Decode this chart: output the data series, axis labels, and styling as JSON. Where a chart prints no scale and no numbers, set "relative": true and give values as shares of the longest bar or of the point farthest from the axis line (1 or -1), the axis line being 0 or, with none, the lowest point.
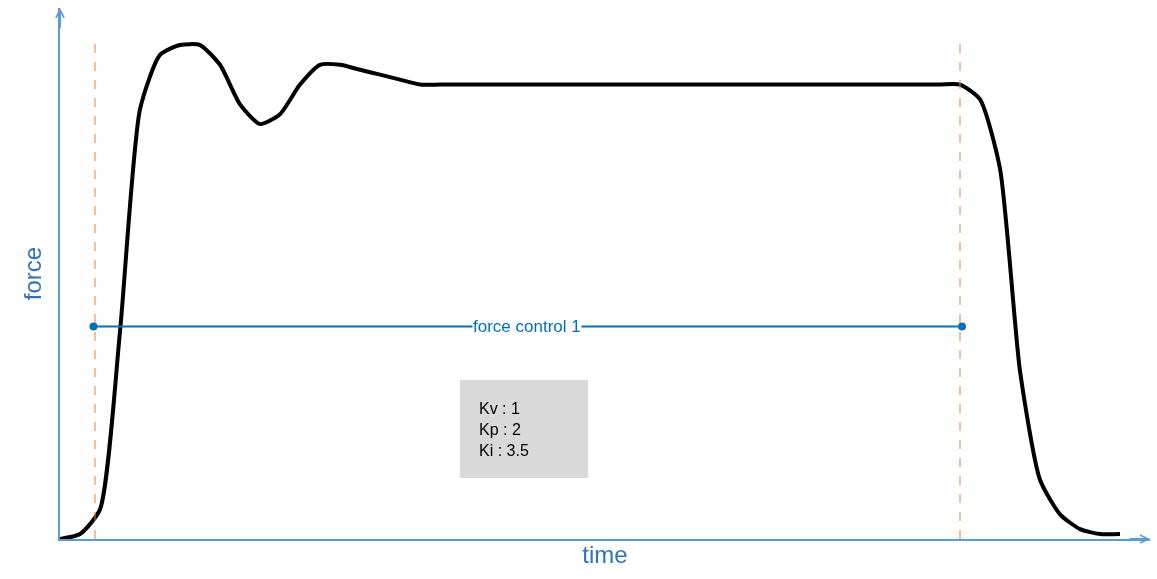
{
  "chart_data": {
    "type": "line",
    "relative": true,
    "xlabel": "time",
    "ylabel": "force",
    "categories": [
      null,
      null,
      null,
      null,
      null,
      null,
      null,
      null,
      null,
      null,
      null,
      null,
      null,
      null,
      null,
      null,
      null,
      null,
      null,
      null,
      null,
      null,
      null,
      null,
      null,
      null,
      null,
      null,
      null,
      null,
      null,
      null,
      null,
      null,
      null,
      null,
      null,
      null,
      null,
      null,
      null,
      null,
      null,
      null,
      null,
      null,
      null,
      null,
      null,
      null,
      null,
      null,
      null,
      null
    ],
    "series": [
      {
        "color": "#000000",
        "values": [
          0.0,
          0.01,
          0.06,
          0.42,
          0.87,
          0.98,
          1,
          1,
          0.96,
          0.88,
          0.84,
          0.86,
          0.92,
          0.96,
          0.96,
          0.95,
          0.94,
          0.93,
          0.92,
          0.92,
          0.92,
          0.92,
          0.92,
          0.92,
          0.92,
          0.92,
          0.92,
          0.92,
          0.92,
          0.92,
          0.92,
          0.92,
          0.92,
          0.92,
          0.92,
          0.92,
          0.92,
          0.92,
          0.92,
          0.92,
          0.92,
          0.92,
          0.92,
          0.92,
          0.92,
          0.92,
          0.89,
          0.75,
          0.34,
          0.12,
          0.05,
          0.02,
          0.01,
          0.01
        ]
      }
    ],
    "annotations": [
      "force control 1",
      "Kv : 1\nKp : 2\nKi : 3.5"
    ],
    "grid": false,
    "marker": "none",
    "line_style": "solid"
  }
}
